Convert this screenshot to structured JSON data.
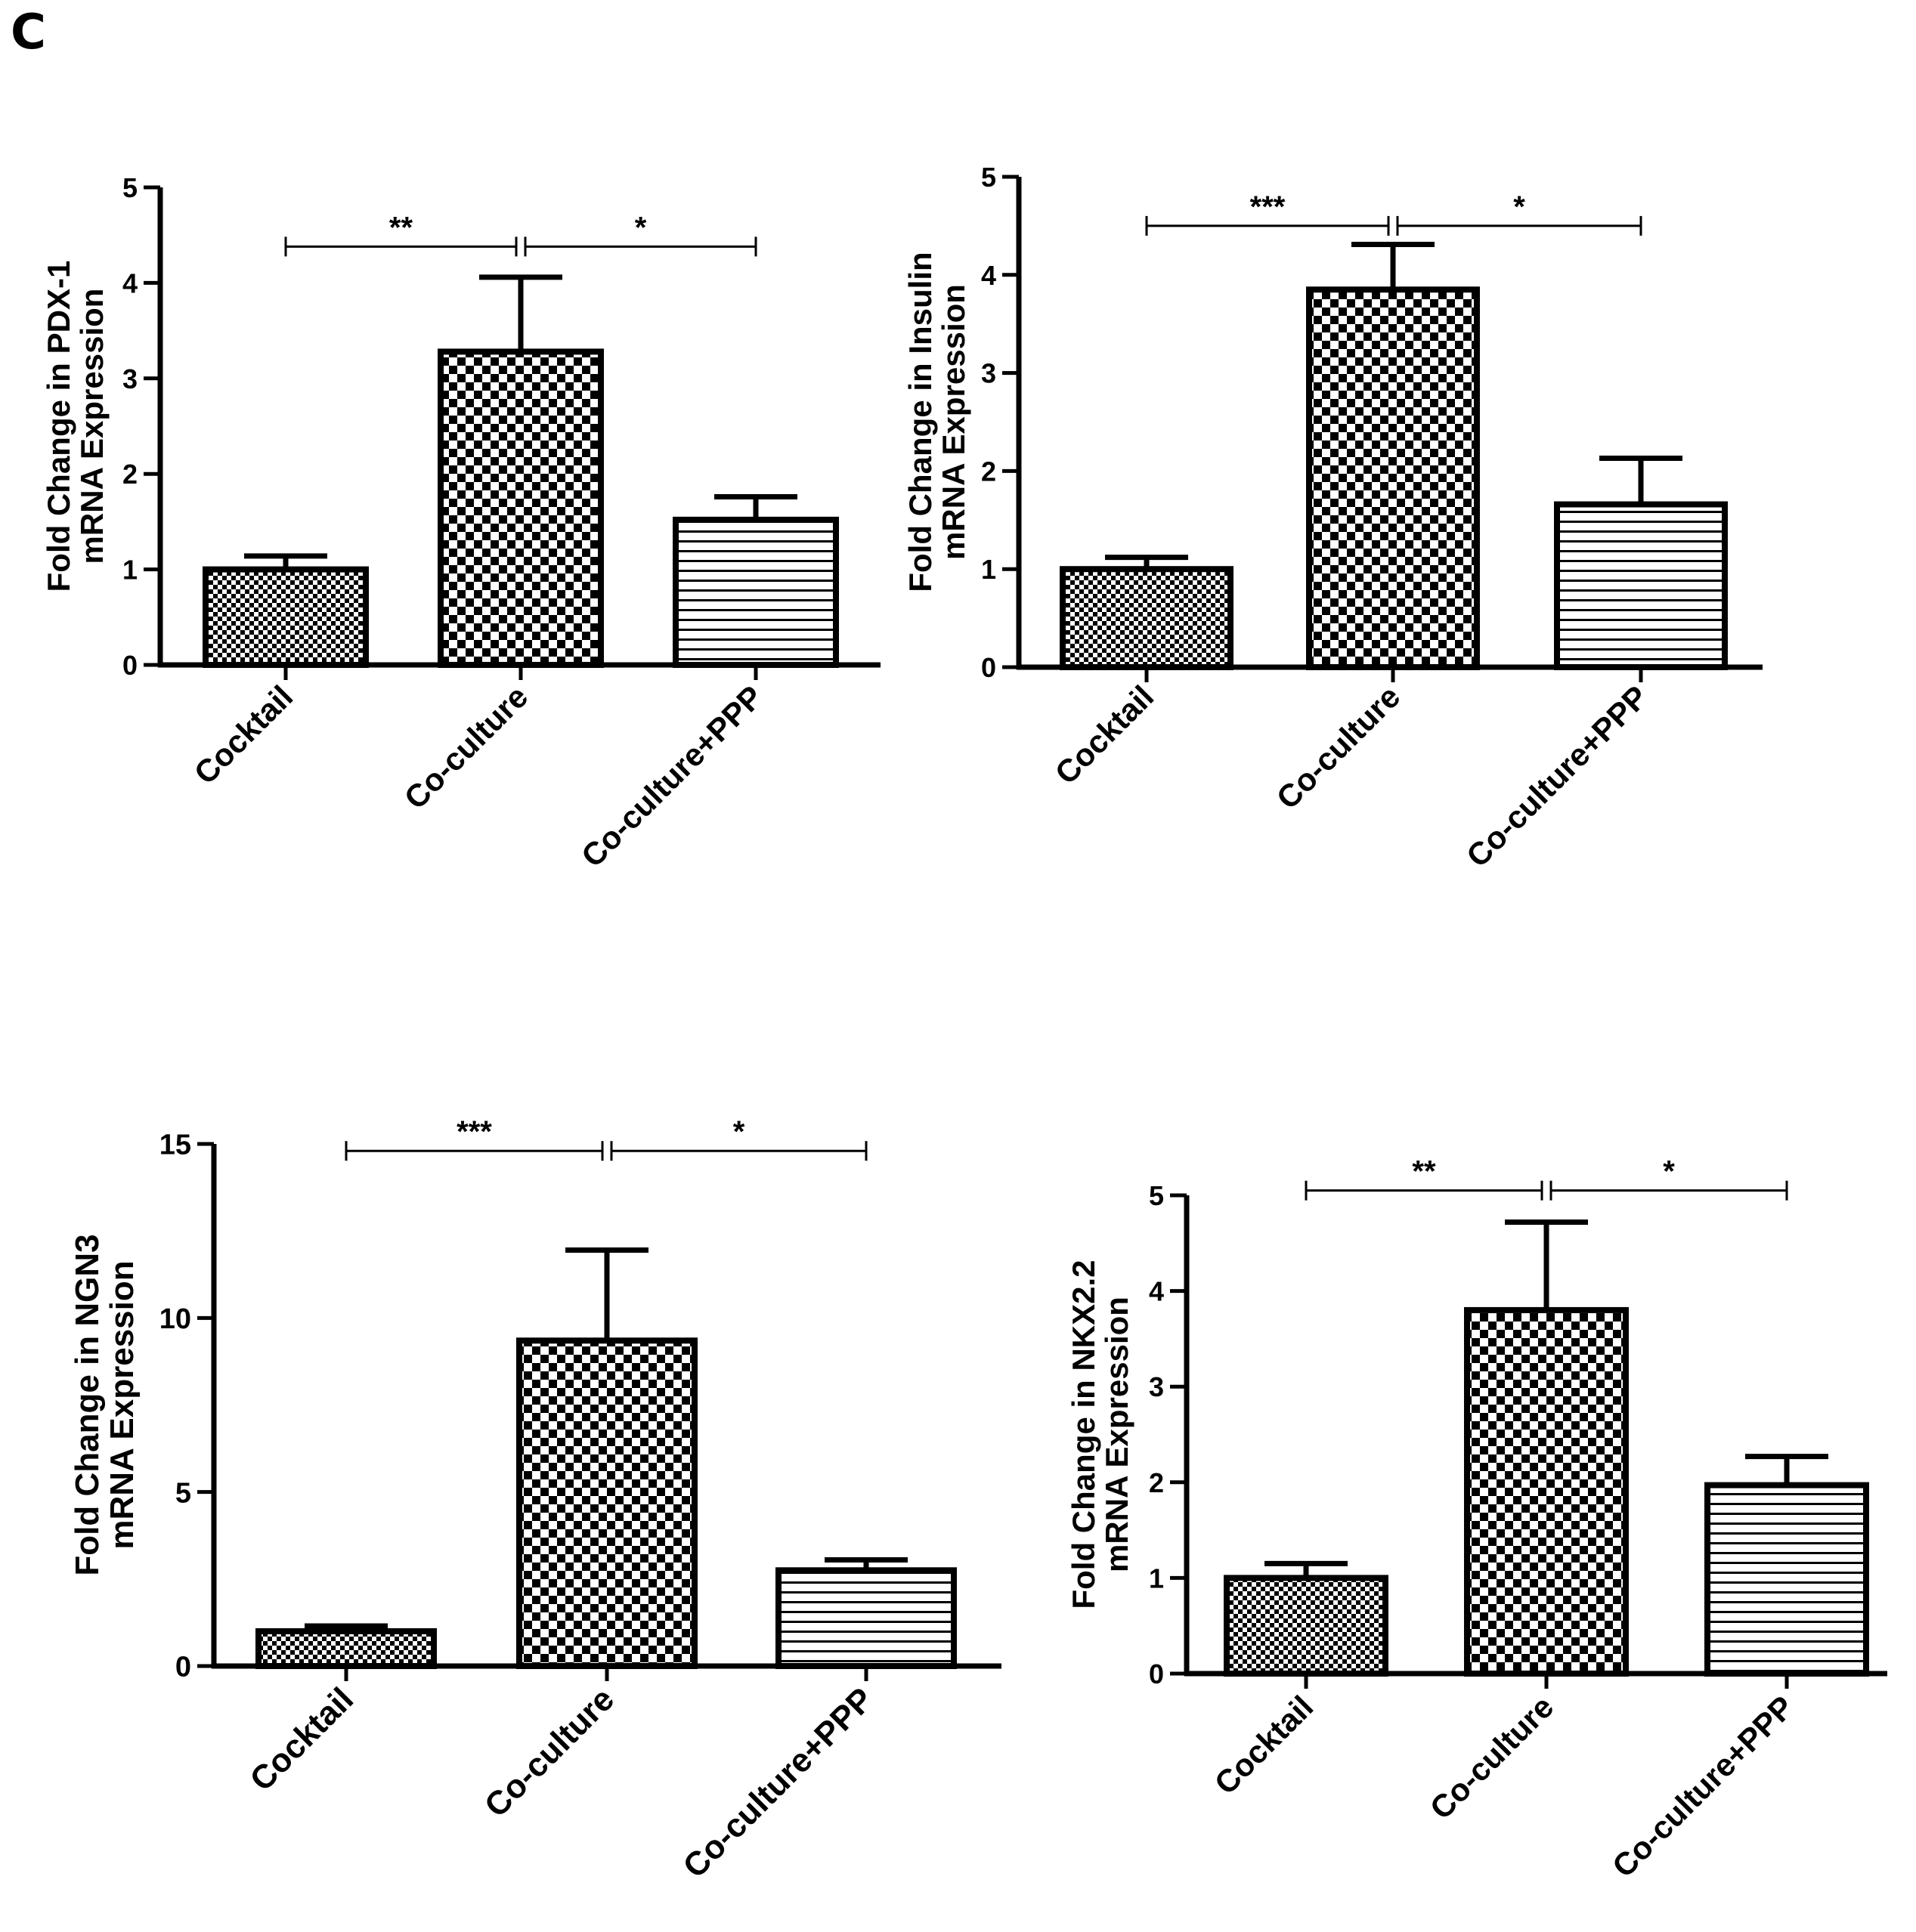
{
  "figure": {
    "panel_letter": "C"
  },
  "colors": {
    "ink": "#000000",
    "background": "#ffffff"
  },
  "chart_data": [
    {
      "type": "bar",
      "ylabel_lines": [
        "Fold Change in PDX-1",
        "mRNA Expression"
      ],
      "categories": [
        "Cocktail",
        "Co-culture",
        "Co-culture+PPP"
      ],
      "values": [
        1.0,
        3.28,
        1.52
      ],
      "errors": [
        0.14,
        0.78,
        0.24
      ],
      "patterns": [
        "fine-check",
        "checker",
        "hstripes"
      ],
      "ylim": [
        0,
        5
      ],
      "yticks": [
        "0",
        "1",
        "2",
        "3",
        "4",
        "5"
      ],
      "significance": [
        {
          "from": "Cocktail",
          "to": "Co-culture",
          "label": "**",
          "y": 4.38
        },
        {
          "from": "Co-culture",
          "to": "Co-culture+PPP",
          "label": "*",
          "y": 4.38
        }
      ]
    },
    {
      "type": "bar",
      "ylabel_lines": [
        "Fold Change in Insulin",
        "mRNA Expression"
      ],
      "categories": [
        "Cocktail",
        "Co-culture",
        "Co-culture+PPP"
      ],
      "values": [
        1.0,
        3.85,
        1.66
      ],
      "errors": [
        0.12,
        0.46,
        0.47
      ],
      "patterns": [
        "fine-check",
        "checker",
        "hstripes"
      ],
      "ylim": [
        0,
        5
      ],
      "yticks": [
        "0",
        "1",
        "2",
        "3",
        "4",
        "5"
      ],
      "significance": [
        {
          "from": "Cocktail",
          "to": "Co-culture",
          "label": "***",
          "y": 4.5
        },
        {
          "from": "Co-culture",
          "to": "Co-culture+PPP",
          "label": "*",
          "y": 4.5
        }
      ]
    },
    {
      "type": "bar",
      "ylabel_lines": [
        "Fold Change in NGN3",
        "mRNA Expression"
      ],
      "categories": [
        "Cocktail",
        "Co-culture",
        "Co-culture+PPP"
      ],
      "values": [
        1.0,
        9.35,
        2.75
      ],
      "errors": [
        0.15,
        2.6,
        0.3
      ],
      "patterns": [
        "fine-check",
        "checker",
        "hstripes"
      ],
      "ylim": [
        0,
        15
      ],
      "yticks": [
        "0",
        "5",
        "10",
        "15"
      ],
      "significance": [
        {
          "from": "Cocktail",
          "to": "Co-culture",
          "label": "***",
          "y": 14.8
        },
        {
          "from": "Co-culture",
          "to": "Co-culture+PPP",
          "label": "*",
          "y": 14.8
        }
      ]
    },
    {
      "type": "bar",
      "ylabel_lines": [
        "Fold Change in NKX2.2",
        "mRNA Expression"
      ],
      "categories": [
        "Cocktail",
        "Co-culture",
        "Co-culture+PPP"
      ],
      "values": [
        1.0,
        3.8,
        1.97
      ],
      "errors": [
        0.15,
        0.92,
        0.3
      ],
      "patterns": [
        "fine-check",
        "checker",
        "hstripes"
      ],
      "ylim": [
        0,
        5
      ],
      "yticks": [
        "0",
        "1",
        "2",
        "3",
        "4",
        "5"
      ],
      "significance": [
        {
          "from": "Cocktail",
          "to": "Co-culture",
          "label": "**",
          "y": 5.05
        },
        {
          "from": "Co-culture",
          "to": "Co-culture+PPP",
          "label": "*",
          "y": 5.05
        }
      ]
    }
  ]
}
